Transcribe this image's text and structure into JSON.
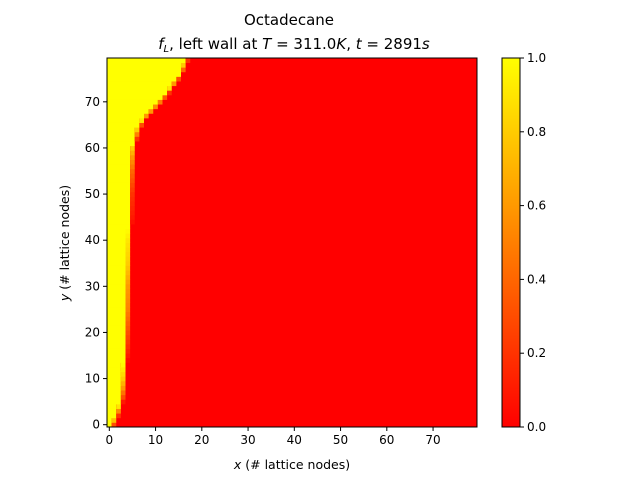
{
  "chart_data": {
    "type": "heatmap",
    "title": "Octadecane",
    "subtitle_parts": {
      "var": "f",
      "var_sub": "L",
      "text1": ", left wall at ",
      "T_sym": "T",
      "T_val": " = 311.0",
      "T_unit": "K",
      "sep": ", ",
      "t_sym": "t",
      "t_val": " = 2891",
      "t_unit": "s"
    },
    "xlabel_var": "x",
    "xlabel_rest": " (# lattice nodes)",
    "ylabel_var": "y",
    "ylabel_rest": " (# lattice nodes)",
    "xlim": [
      -0.5,
      79.5
    ],
    "ylim": [
      -0.5,
      79.5
    ],
    "x_ticks": [
      0,
      10,
      20,
      30,
      40,
      50,
      60,
      70
    ],
    "y_ticks": [
      0,
      10,
      20,
      30,
      40,
      50,
      60,
      70
    ],
    "colorbar_ticks": [
      "0.0",
      "0.2",
      "0.4",
      "0.6",
      "0.8",
      "1.0"
    ],
    "colorbar_range": [
      0.0,
      1.0
    ],
    "colormap": "autumn",
    "colormap_colors": [
      "#ff0000",
      "#ffff00"
    ],
    "description": "liquid fraction f_L per lattice node; liquid (1.0) near the left wall, solid (0.0) elsewhere",
    "melt_front": {
      "y": [
        0,
        2,
        4,
        6,
        8,
        10,
        15,
        20,
        25,
        30,
        35,
        40,
        45,
        50,
        55,
        58,
        60,
        62,
        64,
        65,
        66,
        67,
        68,
        70,
        72,
        74,
        76,
        78,
        79
      ],
      "x": [
        1.3,
        2.2,
        2.9,
        3.3,
        3.6,
        3.8,
        4.1,
        4.3,
        4.5,
        4.6,
        4.8,
        4.9,
        5.1,
        5.2,
        5.4,
        5.6,
        5.8,
        6.2,
        6.8,
        7.3,
        7.9,
        8.6,
        9.6,
        11.5,
        13.2,
        14.6,
        16.0,
        16.8,
        17.2
      ]
    }
  }
}
